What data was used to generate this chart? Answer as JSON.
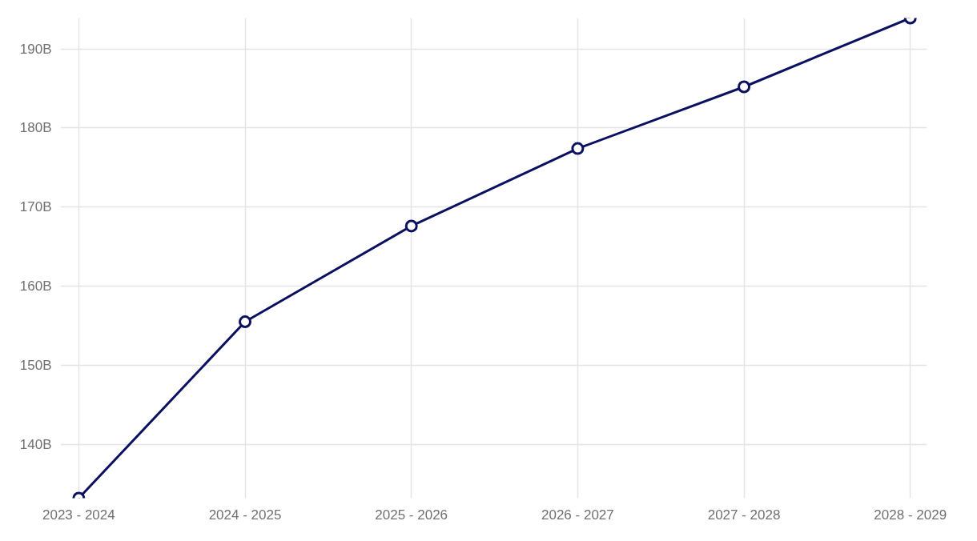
{
  "chart_data": {
    "type": "line",
    "categories": [
      "2023 - 2024",
      "2024 - 2025",
      "2025 - 2026",
      "2026 - 2027",
      "2027 - 2028",
      "2028 - 2029"
    ],
    "series": [
      {
        "color": "#0b1060",
        "values": [
          133.2,
          155.5,
          167.6,
          177.4,
          185.2,
          193.9
        ]
      }
    ],
    "ylim": [
      133.2,
      193.9
    ],
    "yticks": [
      {
        "value": 140,
        "label": "140B"
      },
      {
        "value": 150,
        "label": "150B"
      },
      {
        "value": 160,
        "label": "160B"
      },
      {
        "value": 170,
        "label": "170B"
      },
      {
        "value": 180,
        "label": "180B"
      },
      {
        "value": 190,
        "label": "190B"
      }
    ],
    "grid": true,
    "marker": "circle",
    "line_style": "solid"
  }
}
